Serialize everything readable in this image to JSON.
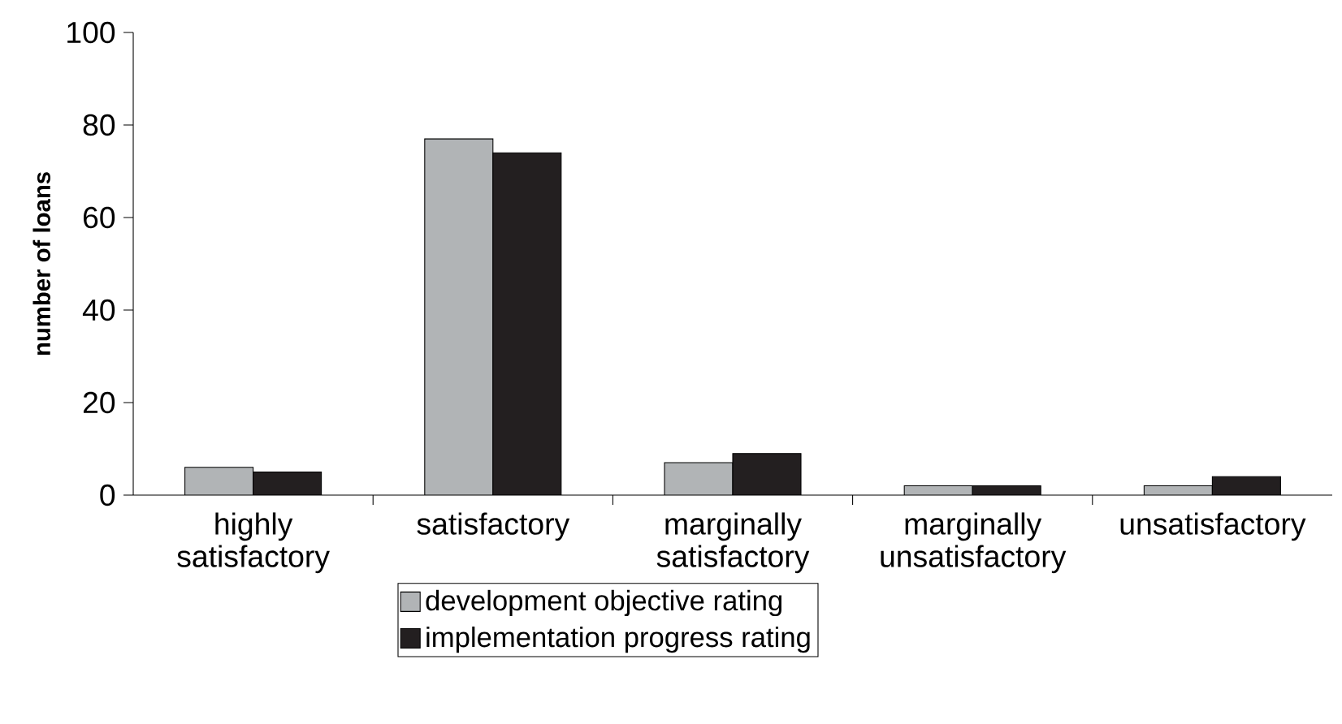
{
  "chart_data": {
    "type": "bar",
    "ylabel": "number of loans",
    "categories": [
      "highly satisfactory",
      "satisfactory",
      "marginally satisfactory",
      "marginally unsatisfactory",
      "unsatisfactory"
    ],
    "series": [
      {
        "name": "development objective rating",
        "color": "#b1b4b6",
        "values": [
          6,
          77,
          7,
          2,
          2
        ]
      },
      {
        "name": "implementation progress rating",
        "color": "#231f20",
        "values": [
          5,
          74,
          9,
          2,
          4
        ]
      }
    ],
    "ylim": [
      0,
      100
    ],
    "yticks": [
      0,
      20,
      40,
      60,
      80,
      100
    ],
    "grid": false,
    "legend": "bottom"
  }
}
